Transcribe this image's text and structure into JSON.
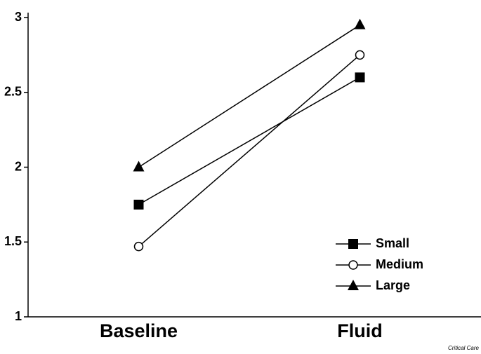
{
  "chart_data": {
    "type": "line",
    "categories": [
      "Baseline",
      "Fluid"
    ],
    "series": [
      {
        "name": "Small",
        "color": "#000000",
        "marker": "square",
        "values": [
          1.75,
          2.6
        ]
      },
      {
        "name": "Medium",
        "color": "#000000",
        "marker": "circle",
        "values": [
          1.47,
          2.75
        ]
      },
      {
        "name": "Large",
        "color": "#000000",
        "marker": "triangle",
        "values": [
          2.0,
          2.95
        ]
      }
    ],
    "ylim": [
      1,
      3
    ],
    "yticks": [
      1,
      1.5,
      2,
      2.5,
      3
    ],
    "legend": "lower right",
    "source": "Critical Care"
  }
}
